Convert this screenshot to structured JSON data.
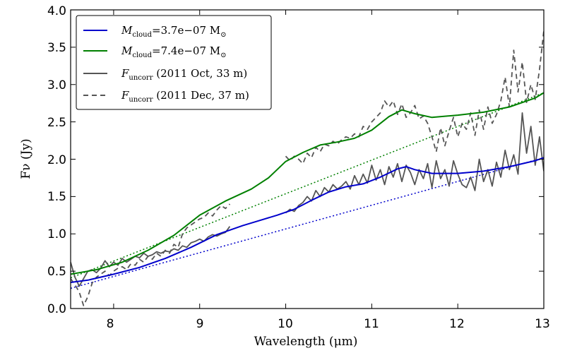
{
  "chart_data": {
    "type": "line",
    "title": "",
    "xlabel": "Wavelength (μm)",
    "ylabel": "Fν (Jy)",
    "xlim": [
      7.5,
      13.0
    ],
    "ylim": [
      0.0,
      4.0
    ],
    "xticks": [
      8,
      9,
      10,
      11,
      12,
      13
    ],
    "xtick_labels": [
      "8",
      "9",
      "10",
      "11",
      "12",
      "13"
    ],
    "yticks": [
      0.0,
      0.5,
      1.0,
      1.5,
      2.0,
      2.5,
      3.0,
      3.5,
      4.0
    ],
    "ytick_labels": [
      "0.0",
      "0.5",
      "1.0",
      "1.5",
      "2.0",
      "2.5",
      "3.0",
      "3.5",
      "4.0"
    ],
    "grid": false,
    "legend_position": "top-left",
    "legend": [
      {
        "name": "Mcloud",
        "sub": "cloud",
        "main": "M",
        "value": "=3.7e−07 M",
        "unit_sub": "⊙",
        "color": "#0000cc",
        "style": "solid"
      },
      {
        "name": "Mcloud",
        "sub": "cloud",
        "main": "M",
        "value": "=7.4e−07 M",
        "unit_sub": "⊙",
        "color": "#008000",
        "style": "solid"
      },
      {
        "name": "Funcorr",
        "sub": "uncorr",
        "main": "F",
        "value": " (2011 Oct, 33 m)",
        "unit_sub": "",
        "color": "#555555",
        "style": "solid"
      },
      {
        "name": "Funcorr",
        "sub": "uncorr",
        "main": "F",
        "value": " (2011 Dec, 37 m)",
        "unit_sub": "",
        "color": "#555555",
        "style": "dashed"
      }
    ],
    "series": [
      {
        "name": "Mcloud=3.7e-07 Msun",
        "color": "#0000cc",
        "style": "solid",
        "width": 2,
        "x": [
          7.5,
          7.7,
          8.0,
          8.3,
          8.6,
          8.9,
          9.2,
          9.5,
          9.7,
          9.9,
          10.1,
          10.3,
          10.5,
          10.7,
          10.9,
          11.1,
          11.3,
          11.4,
          11.5,
          11.7,
          12.0,
          12.3,
          12.6,
          12.9,
          13.0
        ],
        "y": [
          0.35,
          0.38,
          0.46,
          0.55,
          0.67,
          0.82,
          0.99,
          1.11,
          1.18,
          1.25,
          1.33,
          1.45,
          1.56,
          1.63,
          1.67,
          1.76,
          1.87,
          1.9,
          1.86,
          1.81,
          1.81,
          1.84,
          1.9,
          1.98,
          2.02
        ]
      },
      {
        "name": "Mcloud=7.4e-07 Msun",
        "color": "#008000",
        "style": "solid",
        "width": 2,
        "x": [
          7.5,
          7.8,
          8.1,
          8.4,
          8.7,
          9.0,
          9.3,
          9.6,
          9.8,
          10.0,
          10.2,
          10.4,
          10.6,
          10.8,
          11.0,
          11.2,
          11.35,
          11.5,
          11.7,
          12.0,
          12.3,
          12.6,
          12.9,
          13.0
        ],
        "y": [
          0.46,
          0.52,
          0.62,
          0.78,
          0.98,
          1.25,
          1.44,
          1.6,
          1.75,
          1.97,
          2.09,
          2.19,
          2.23,
          2.28,
          2.39,
          2.57,
          2.66,
          2.61,
          2.56,
          2.59,
          2.63,
          2.7,
          2.82,
          2.89
        ]
      },
      {
        "name": "continuum (low mass)",
        "color": "#0000cc",
        "style": "dotted",
        "width": 1.5,
        "x": [
          7.5,
          13.0
        ],
        "y": [
          0.27,
          2.02
        ]
      },
      {
        "name": "continuum (high mass)",
        "color": "#008000",
        "style": "dotted",
        "width": 1.5,
        "x": [
          7.5,
          13.0
        ],
        "y": [
          0.41,
          2.89
        ]
      },
      {
        "name": "Funcorr (2011 Oct, 33 m)",
        "color": "#555555",
        "style": "solid",
        "width": 1.8,
        "segments": [
          {
            "x": [
              7.5,
              7.55,
              7.6,
              7.65,
              7.7,
              7.75,
              7.8,
              7.85,
              7.9,
              7.95,
              8.0,
              8.05,
              8.1,
              8.15,
              8.2,
              8.25,
              8.3,
              8.35,
              8.4,
              8.45,
              8.5,
              8.55,
              8.6,
              8.65,
              8.7,
              8.75,
              8.8,
              8.85,
              8.9,
              8.95,
              9.0,
              9.05,
              9.1,
              9.15,
              9.2,
              9.25,
              9.3,
              9.35
            ],
            "y": [
              0.62,
              0.42,
              0.3,
              0.4,
              0.5,
              0.52,
              0.48,
              0.54,
              0.64,
              0.56,
              0.62,
              0.58,
              0.67,
              0.62,
              0.66,
              0.7,
              0.68,
              0.74,
              0.7,
              0.72,
              0.76,
              0.74,
              0.77,
              0.76,
              0.8,
              0.78,
              0.84,
              0.82,
              0.88,
              0.9,
              0.93,
              0.9,
              0.96,
              0.99,
              0.97,
              1.0,
              1.02,
              1.1
            ]
          },
          {
            "x": [
              10.0,
              10.05,
              10.1,
              10.15,
              10.2,
              10.25,
              10.3,
              10.35,
              10.4,
              10.45,
              10.5,
              10.55,
              10.6,
              10.65,
              10.7,
              10.75,
              10.8,
              10.85,
              10.9,
              10.95,
              11.0,
              11.05,
              11.1,
              11.15,
              11.2,
              11.25,
              11.3,
              11.35,
              11.4,
              11.45,
              11.5,
              11.55,
              11.6,
              11.65,
              11.7,
              11.75,
              11.8,
              11.85,
              11.9,
              11.95,
              12.0,
              12.05,
              12.1,
              12.15,
              12.2,
              12.25,
              12.3,
              12.35,
              12.4,
              12.45,
              12.5,
              12.55,
              12.6,
              12.65,
              12.7,
              12.75,
              12.8,
              12.85,
              12.9,
              12.95,
              13.0
            ],
            "y": [
              1.28,
              1.33,
              1.3,
              1.38,
              1.42,
              1.5,
              1.44,
              1.58,
              1.5,
              1.62,
              1.56,
              1.66,
              1.6,
              1.64,
              1.7,
              1.6,
              1.78,
              1.66,
              1.8,
              1.68,
              1.92,
              1.72,
              1.86,
              1.66,
              1.9,
              1.76,
              1.94,
              1.7,
              1.92,
              1.82,
              1.66,
              1.86,
              1.74,
              1.94,
              1.62,
              1.98,
              1.74,
              1.86,
              1.64,
              1.98,
              1.8,
              1.66,
              1.62,
              1.76,
              1.58,
              2.0,
              1.7,
              1.86,
              1.64,
              1.96,
              1.76,
              2.12,
              1.86,
              2.06,
              1.8,
              2.62,
              2.08,
              2.44,
              1.92,
              2.3,
              1.84
            ]
          }
        ]
      },
      {
        "name": "Funcorr (2011 Dec, 37 m)",
        "color": "#555555",
        "style": "dashed",
        "width": 1.8,
        "segments": [
          {
            "x": [
              7.5,
              7.55,
              7.6,
              7.65,
              7.7,
              7.75,
              7.8,
              7.85,
              7.9,
              7.95,
              8.0,
              8.05,
              8.1,
              8.15,
              8.2,
              8.25,
              8.3,
              8.35,
              8.4,
              8.45,
              8.5,
              8.55,
              8.6,
              8.65,
              8.7,
              8.75,
              8.8,
              8.85,
              8.9,
              8.95,
              9.0,
              9.05,
              9.1,
              9.15,
              9.2,
              9.25,
              9.3,
              9.35
            ],
            "y": [
              0.4,
              0.32,
              0.22,
              0.04,
              0.16,
              0.34,
              0.42,
              0.46,
              0.5,
              0.44,
              0.5,
              0.54,
              0.56,
              0.52,
              0.6,
              0.58,
              0.66,
              0.62,
              0.7,
              0.66,
              0.74,
              0.7,
              0.78,
              0.74,
              0.86,
              0.82,
              1.0,
              1.08,
              1.12,
              1.16,
              1.2,
              1.22,
              1.28,
              1.24,
              1.32,
              1.38,
              1.34,
              1.4
            ]
          },
          {
            "x": [
              10.0,
              10.05,
              10.1,
              10.15,
              10.2,
              10.25,
              10.3,
              10.35,
              10.4,
              10.45,
              10.5,
              10.55,
              10.6,
              10.65,
              10.7,
              10.75,
              10.8,
              10.85,
              10.9,
              10.95,
              11.0,
              11.05,
              11.1,
              11.15,
              11.2,
              11.25,
              11.3,
              11.35,
              11.4,
              11.45,
              11.5,
              11.55,
              11.6,
              11.65,
              11.7,
              11.75,
              11.8,
              11.85,
              11.9,
              11.95,
              12.0,
              12.05,
              12.1,
              12.15,
              12.2,
              12.25,
              12.3,
              12.35,
              12.4,
              12.45,
              12.5,
              12.55,
              12.6,
              12.65,
              12.7,
              12.75,
              12.8,
              12.85,
              12.9,
              12.95,
              13.0
            ],
            "y": [
              2.04,
              1.98,
              2.04,
              2.0,
              1.94,
              2.08,
              2.02,
              2.16,
              2.1,
              2.2,
              2.18,
              2.24,
              2.2,
              2.26,
              2.3,
              2.28,
              2.34,
              2.3,
              2.44,
              2.4,
              2.5,
              2.56,
              2.62,
              2.78,
              2.7,
              2.78,
              2.6,
              2.74,
              2.56,
              2.62,
              2.72,
              2.54,
              2.58,
              2.48,
              2.3,
              2.1,
              2.42,
              2.18,
              2.38,
              2.56,
              2.3,
              2.48,
              2.4,
              2.62,
              2.32,
              2.66,
              2.4,
              2.7,
              2.48,
              2.6,
              2.78,
              3.1,
              2.7,
              3.46,
              2.9,
              3.3,
              2.76,
              3.0,
              2.8,
              3.2,
              3.72
            ]
          }
        ]
      }
    ]
  }
}
